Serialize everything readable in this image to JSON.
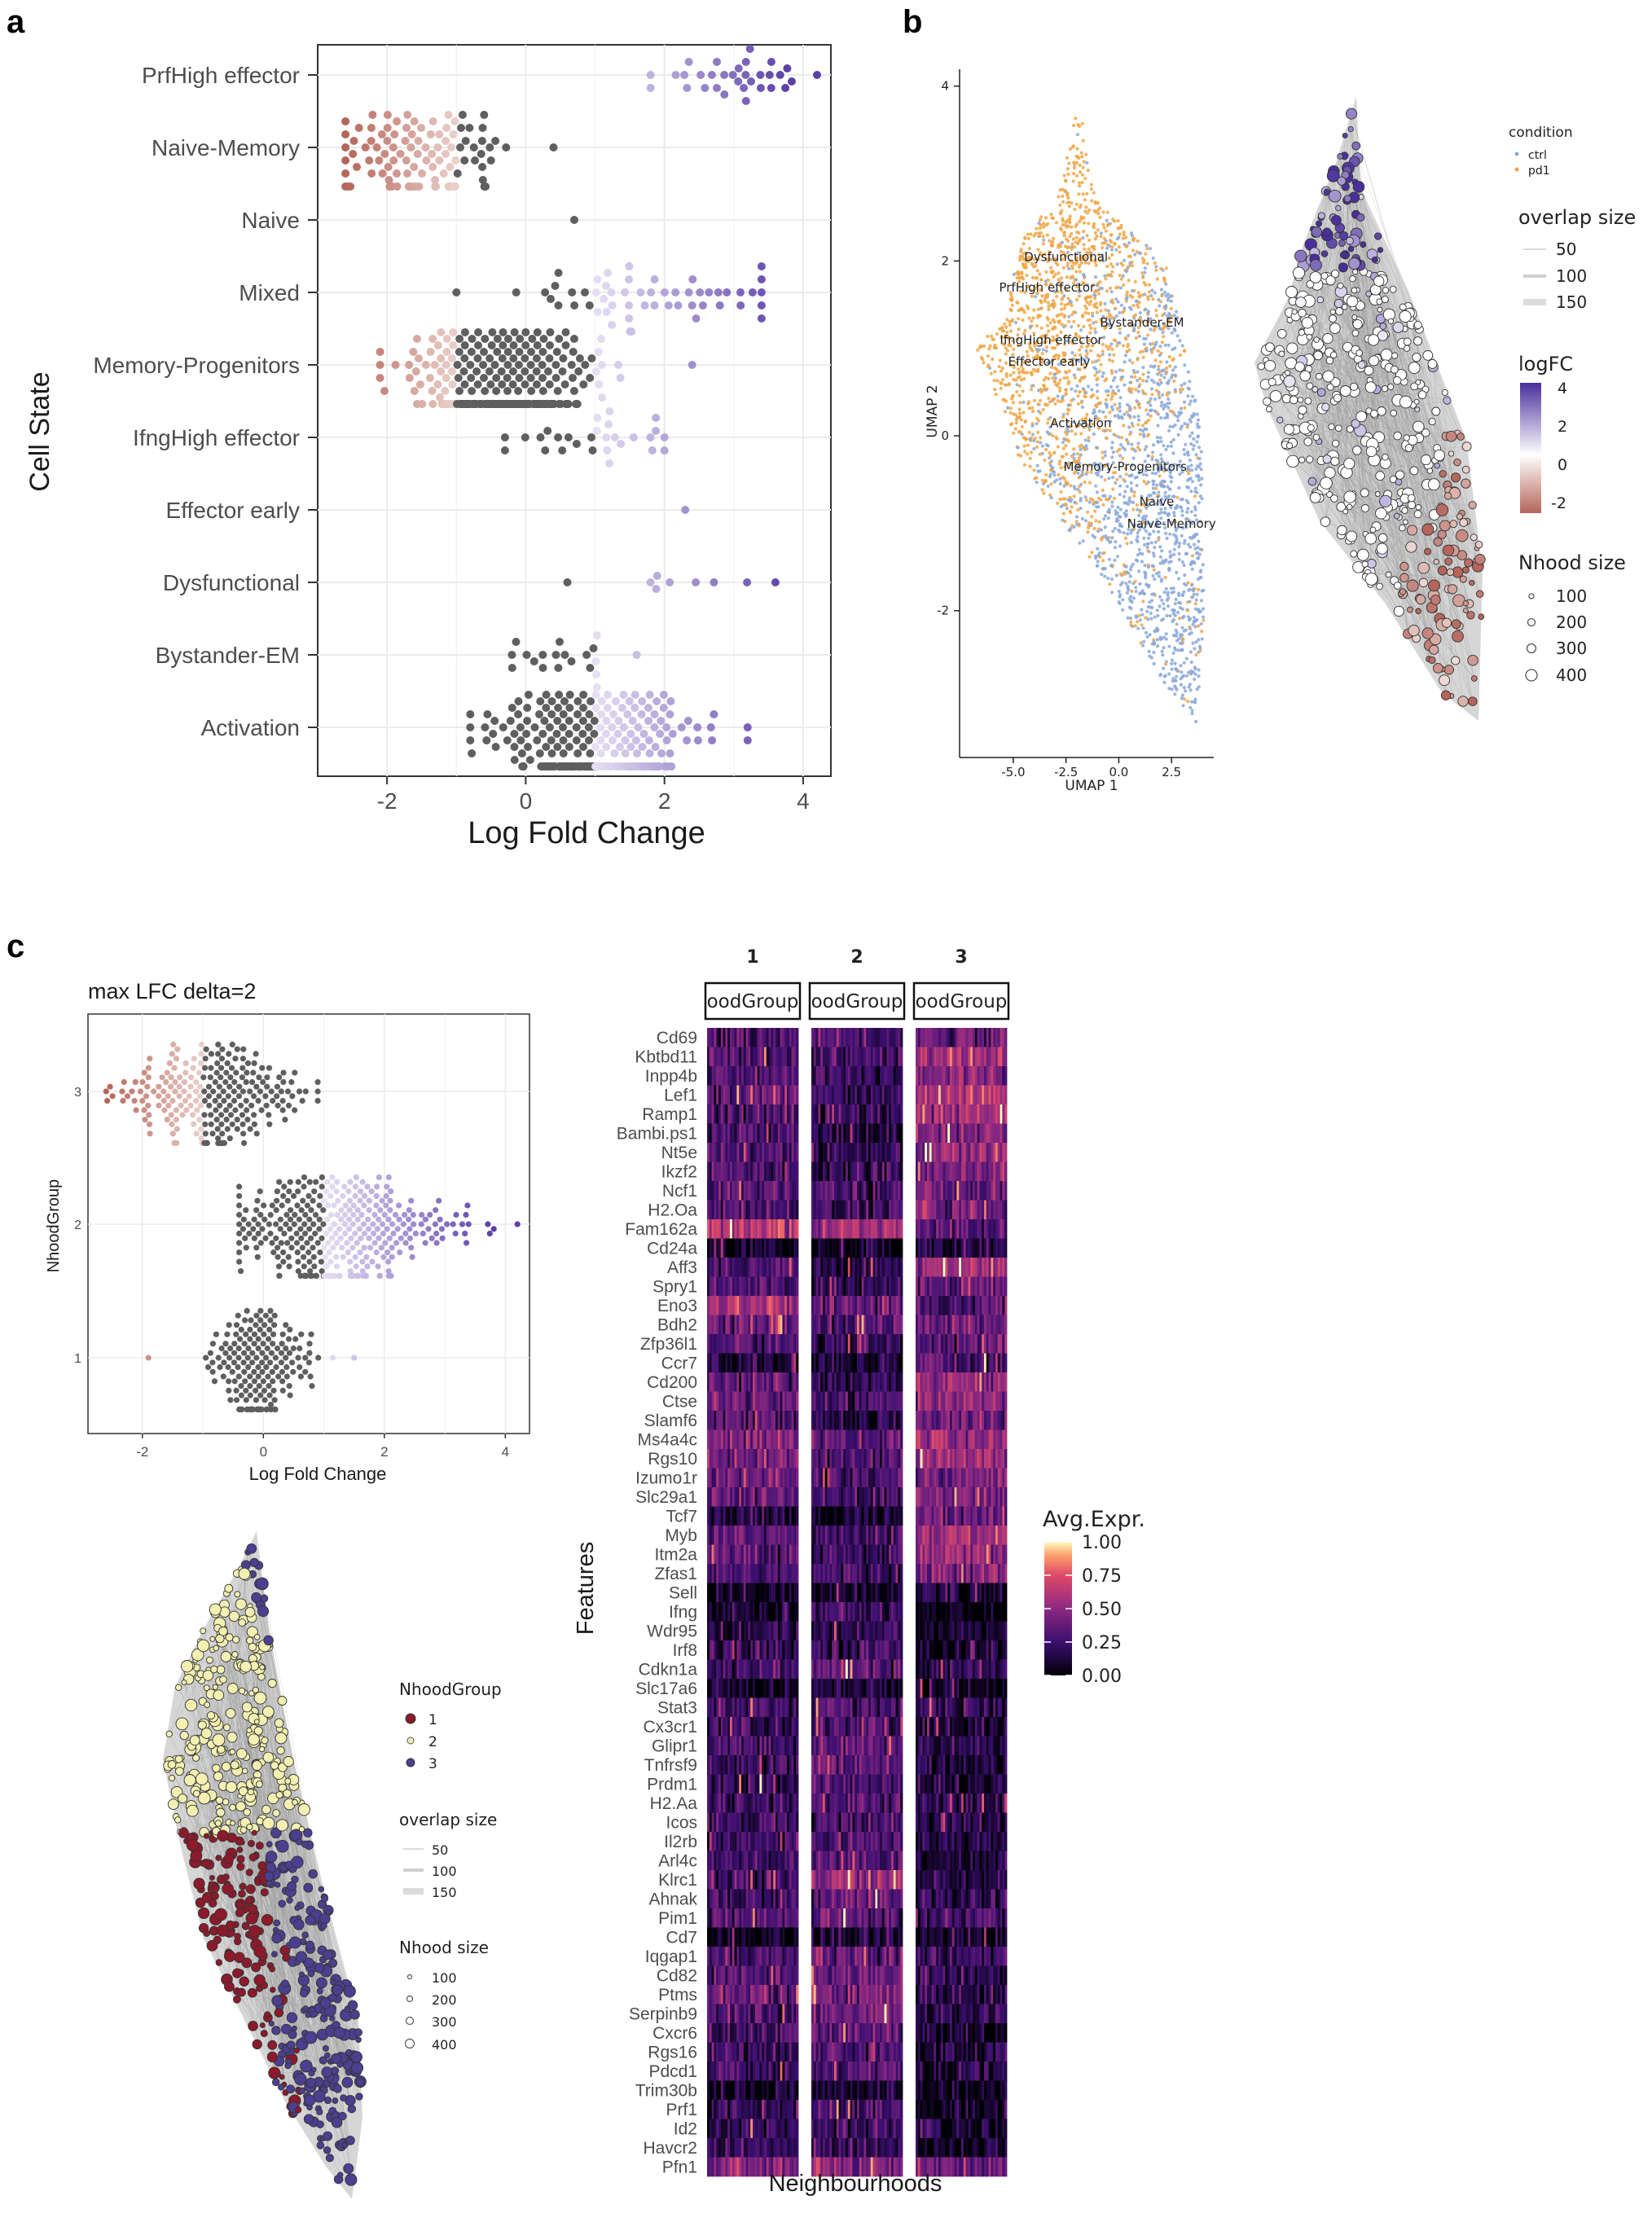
{
  "panels": {
    "a": "a",
    "b": "b",
    "c": "c"
  },
  "colors": {
    "neg": "#b5655a",
    "pos": "#5b3fa8",
    "grey": "#5f5f5f",
    "panel_bg": "#ffffff",
    "grid": "#ebebeb"
  },
  "chart_data": [
    {
      "id": "a",
      "type": "scatter",
      "subtype": "beeswarm",
      "xlabel": "Log Fold Change",
      "ylabel": "Cell State",
      "xlim": [
        -3,
        4.4
      ],
      "xticks": [
        "-2",
        "0",
        "2",
        "4"
      ],
      "xtick_values": [
        -2,
        0,
        2,
        4
      ],
      "categories": [
        "PrfHigh effector",
        "Naive-Memory",
        "Naive",
        "Mixed",
        "Memory-Progenitors",
        "IfngHigh effector",
        "Effector early",
        "Dysfunctional",
        "Bystander-EM",
        "Activation"
      ],
      "groups": [
        {
          "name": "PrfHigh effector",
          "count": 32,
          "center": 3.0,
          "spread": 0.6,
          "min": 1.8,
          "max": 4.2
        },
        {
          "name": "Naive-Memory",
          "count": 110,
          "center": -1.5,
          "spread": 0.6,
          "min": -2.6,
          "max": 0.4
        },
        {
          "name": "Naive",
          "count": 1,
          "center": 0.7,
          "spread": 0.0,
          "min": 0.7,
          "max": 0.7
        },
        {
          "name": "Mixed",
          "count": 55,
          "center": 1.6,
          "spread": 1.0,
          "min": -1.0,
          "max": 3.4
        },
        {
          "name": "Memory-Progenitors",
          "count": 420,
          "center": -0.3,
          "spread": 0.6,
          "min": -2.1,
          "max": 2.4
        },
        {
          "name": "IfngHigh effector",
          "count": 28,
          "center": 0.9,
          "spread": 0.5,
          "min": -0.3,
          "max": 2.0
        },
        {
          "name": "Effector early",
          "count": 1,
          "center": 2.3,
          "spread": 0.0,
          "min": 2.3,
          "max": 2.3
        },
        {
          "name": "Dysfunctional",
          "count": 9,
          "center": 1.9,
          "spread": 0.8,
          "min": 0.6,
          "max": 3.6
        },
        {
          "name": "Bystander-EM",
          "count": 20,
          "center": 0.6,
          "spread": 0.4,
          "min": -0.2,
          "max": 1.6
        },
        {
          "name": "Activation",
          "count": 320,
          "center": 1.0,
          "spread": 0.7,
          "min": -0.8,
          "max": 3.2
        }
      ]
    },
    {
      "id": "b",
      "type": "scatter",
      "subtype": "umap",
      "xlabel": "UMAP 1",
      "ylabel": "UMAP 2",
      "xticks": [
        "-5.0",
        "-2.5",
        "0.0",
        "2.5"
      ],
      "xtick_values": [
        -5,
        -2.5,
        0,
        2.5
      ],
      "yticks": [
        "4",
        "2",
        "0",
        "-2"
      ],
      "ytick_values": [
        4,
        2,
        0,
        -2
      ],
      "xlim": [
        -6,
        4.5
      ],
      "ylim": [
        -3.4,
        4.1
      ],
      "cluster_labels": [
        {
          "text": "Dysfunctional",
          "x": -2.5,
          "y": 2.0
        },
        {
          "text": "PrfHigh effector",
          "x": -3.4,
          "y": 1.65
        },
        {
          "text": "Bystander-EM",
          "x": 1.1,
          "y": 1.25
        },
        {
          "text": "IfngHigh effector",
          "x": -3.2,
          "y": 1.05
        },
        {
          "text": "Effector early",
          "x": -3.3,
          "y": 0.8
        },
        {
          "text": "Activation",
          "x": -1.8,
          "y": 0.1
        },
        {
          "text": "Memory-Progenitors",
          "x": 0.3,
          "y": -0.4
        },
        {
          "text": "Naive",
          "x": 1.8,
          "y": -0.8
        },
        {
          "text": "Naive-Memory",
          "x": 2.5,
          "y": -1.05
        }
      ],
      "legend_condition": {
        "title": "condition",
        "items": [
          "ctrl",
          "pd1"
        ],
        "colors": [
          "#8aa8d8",
          "#f0a646"
        ]
      },
      "legend_overlap": {
        "title": "overlap size",
        "items": [
          "50",
          "100",
          "150"
        ]
      },
      "legend_logfc": {
        "title": "logFC",
        "ticks": [
          "4",
          "2",
          "0",
          "-2"
        ]
      },
      "legend_nhood": {
        "title": "Nhood size",
        "items": [
          "100",
          "200",
          "300",
          "400"
        ]
      }
    },
    {
      "id": "c1",
      "type": "scatter",
      "subtype": "beeswarm",
      "title": "max LFC delta=2",
      "xlabel": "Log Fold Change",
      "ylabel": "NhoodGroup",
      "xlim": [
        -2.9,
        4.4
      ],
      "xticks": [
        "-2",
        "0",
        "2",
        "4"
      ],
      "xtick_values": [
        -2,
        0,
        2,
        4
      ],
      "categories": [
        "3",
        "2",
        "1"
      ],
      "groups": [
        {
          "name": "3",
          "count": 240,
          "center": -0.8,
          "spread": 0.75,
          "min": -2.6,
          "max": 0.9
        },
        {
          "name": "2",
          "count": 360,
          "center": 1.3,
          "spread": 0.9,
          "min": -0.4,
          "max": 4.2
        },
        {
          "name": "1",
          "count": 190,
          "center": 0.0,
          "spread": 0.4,
          "min": -1.9,
          "max": 1.5
        }
      ]
    },
    {
      "id": "c2",
      "type": "scatter",
      "subtype": "nhood-graph",
      "legend_group": {
        "title": "NhoodGroup",
        "items": [
          "1",
          "2",
          "3"
        ],
        "colors": [
          "#8b1a2b",
          "#f3f0b2",
          "#4b3f8f"
        ]
      },
      "legend_overlap": {
        "title": "overlap size",
        "items": [
          "50",
          "100",
          "150"
        ]
      },
      "legend_nhood": {
        "title": "Nhood size",
        "items": [
          "100",
          "200",
          "300",
          "400"
        ]
      }
    },
    {
      "id": "c3",
      "type": "heatmap",
      "xlabel": "Neighbourhoods",
      "ylabel": "Features",
      "facet_numbers": [
        "1",
        "2",
        "3"
      ],
      "facet_strip_text": "NhoodGroup",
      "strip_visible_text": [
        "oodGroup",
        "oodGroup",
        "oodGroup"
      ],
      "features": [
        "Cd69",
        "Kbtbd11",
        "Inpp4b",
        "Lef1",
        "Ramp1",
        "Bambi.ps1",
        "Nt5e",
        "Ikzf2",
        "Ncf1",
        "H2.Oa",
        "Fam162a",
        "Cd24a",
        "Aff3",
        "Spry1",
        "Eno3",
        "Bdh2",
        "Zfp36l1",
        "Ccr7",
        "Cd200",
        "Ctse",
        "Slamf6",
        "Ms4a4c",
        "Rgs10",
        "Izumo1r",
        "Slc29a1",
        "Tcf7",
        "Myb",
        "Itm2a",
        "Zfas1",
        "Sell",
        "Ifng",
        "Wdr95",
        "Irf8",
        "Cdkn1a",
        "Slc17a6",
        "Stat3",
        "Cx3cr1",
        "Glipr1",
        "Tnfrsf9",
        "Prdm1",
        "H2.Aa",
        "Icos",
        "Il2rb",
        "Arl4c",
        "Klrc1",
        "Ahnak",
        "Pim1",
        "Cd7",
        "Iqgap1",
        "Cd82",
        "Ptms",
        "Serpinb9",
        "Cxcr6",
        "Rgs16",
        "Pdcd1",
        "Trim30b",
        "Prf1",
        "Id2",
        "Havcr2",
        "Pfn1"
      ],
      "group_means": [
        [
          0.3,
          0.28,
          0.38
        ],
        [
          0.32,
          0.26,
          0.55
        ],
        [
          0.3,
          0.22,
          0.5
        ],
        [
          0.35,
          0.22,
          0.62
        ],
        [
          0.3,
          0.2,
          0.55
        ],
        [
          0.28,
          0.18,
          0.45
        ],
        [
          0.32,
          0.2,
          0.52
        ],
        [
          0.3,
          0.22,
          0.45
        ],
        [
          0.35,
          0.28,
          0.4
        ],
        [
          0.3,
          0.24,
          0.42
        ],
        [
          0.62,
          0.55,
          0.35
        ],
        [
          0.05,
          0.05,
          0.15
        ],
        [
          0.3,
          0.2,
          0.55
        ],
        [
          0.3,
          0.22,
          0.4
        ],
        [
          0.6,
          0.4,
          0.3
        ],
        [
          0.4,
          0.3,
          0.4
        ],
        [
          0.3,
          0.22,
          0.35
        ],
        [
          0.12,
          0.08,
          0.3
        ],
        [
          0.35,
          0.2,
          0.5
        ],
        [
          0.4,
          0.25,
          0.5
        ],
        [
          0.3,
          0.15,
          0.4
        ],
        [
          0.45,
          0.35,
          0.55
        ],
        [
          0.45,
          0.3,
          0.55
        ],
        [
          0.4,
          0.28,
          0.45
        ],
        [
          0.35,
          0.25,
          0.45
        ],
        [
          0.12,
          0.08,
          0.4
        ],
        [
          0.35,
          0.25,
          0.55
        ],
        [
          0.3,
          0.2,
          0.5
        ],
        [
          0.3,
          0.25,
          0.45
        ],
        [
          0.08,
          0.08,
          0.15
        ],
        [
          0.1,
          0.25,
          0.05
        ],
        [
          0.15,
          0.2,
          0.1
        ],
        [
          0.2,
          0.25,
          0.1
        ],
        [
          0.25,
          0.35,
          0.15
        ],
        [
          0.08,
          0.12,
          0.05
        ],
        [
          0.25,
          0.3,
          0.2
        ],
        [
          0.2,
          0.28,
          0.12
        ],
        [
          0.25,
          0.35,
          0.15
        ],
        [
          0.25,
          0.35,
          0.12
        ],
        [
          0.2,
          0.3,
          0.1
        ],
        [
          0.25,
          0.3,
          0.2
        ],
        [
          0.25,
          0.3,
          0.15
        ],
        [
          0.25,
          0.3,
          0.15
        ],
        [
          0.22,
          0.3,
          0.15
        ],
        [
          0.25,
          0.5,
          0.15
        ],
        [
          0.25,
          0.35,
          0.18
        ],
        [
          0.3,
          0.35,
          0.25
        ],
        [
          0.08,
          0.12,
          0.08
        ],
        [
          0.3,
          0.35,
          0.25
        ],
        [
          0.3,
          0.4,
          0.2
        ],
        [
          0.35,
          0.45,
          0.2
        ],
        [
          0.3,
          0.4,
          0.18
        ],
        [
          0.25,
          0.35,
          0.12
        ],
        [
          0.25,
          0.3,
          0.12
        ],
        [
          0.25,
          0.3,
          0.12
        ],
        [
          0.05,
          0.08,
          0.05
        ],
        [
          0.15,
          0.25,
          0.08
        ],
        [
          0.2,
          0.25,
          0.1
        ],
        [
          0.2,
          0.25,
          0.1
        ],
        [
          0.45,
          0.45,
          0.4
        ]
      ],
      "legend": {
        "title": "Avg.Expr.",
        "ticks": [
          "1.00",
          "0.75",
          "0.50",
          "0.25",
          "0.00"
        ],
        "tick_values": [
          1.0,
          0.75,
          0.5,
          0.25,
          0.0
        ]
      }
    }
  ]
}
